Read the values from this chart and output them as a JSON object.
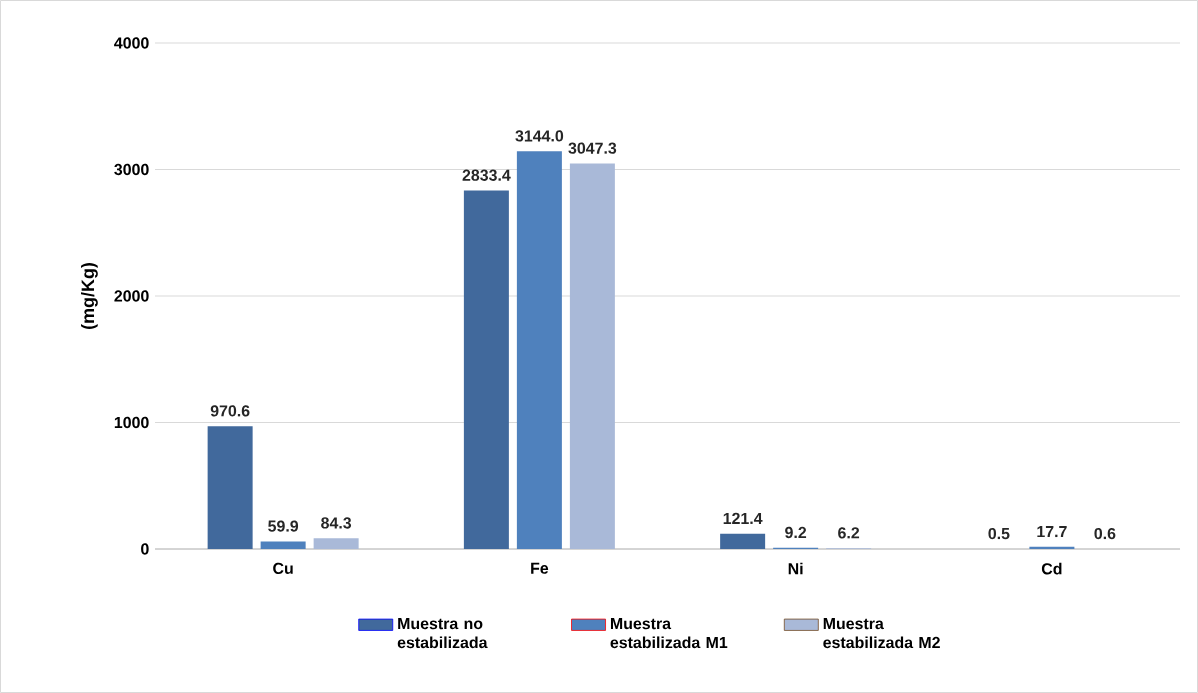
{
  "chart_data": {
    "type": "bar",
    "ylabel": "(mg/Kg)",
    "categories": [
      "Cu",
      "Fe",
      "Ni",
      "Cd"
    ],
    "series": [
      {
        "name": "Muestra no estabilizada",
        "color": "#41699c",
        "values": [
          970.6,
          2833.4,
          121.4,
          0.5
        ],
        "value_labels": [
          "970.6",
          "2833.4",
          "121.4",
          "0.5"
        ]
      },
      {
        "name": "Muestra estabilizada M1",
        "color": "#4f81bd",
        "values": [
          59.9,
          3144.0,
          9.2,
          17.7
        ],
        "value_labels": [
          "59.9",
          "3144.0",
          "9.2",
          "17.7"
        ]
      },
      {
        "name": "Muestra estabilizada M2",
        "color": "#a9b9d8",
        "values": [
          84.3,
          3047.3,
          6.2,
          0.6
        ],
        "value_labels": [
          "84.3",
          "3047.3",
          "6.2",
          "0.6"
        ]
      }
    ],
    "ylim": [
      0,
      4000
    ],
    "yticks": [
      0,
      1000,
      2000,
      3000,
      4000
    ],
    "grid": "y",
    "legend": "bottom"
  }
}
